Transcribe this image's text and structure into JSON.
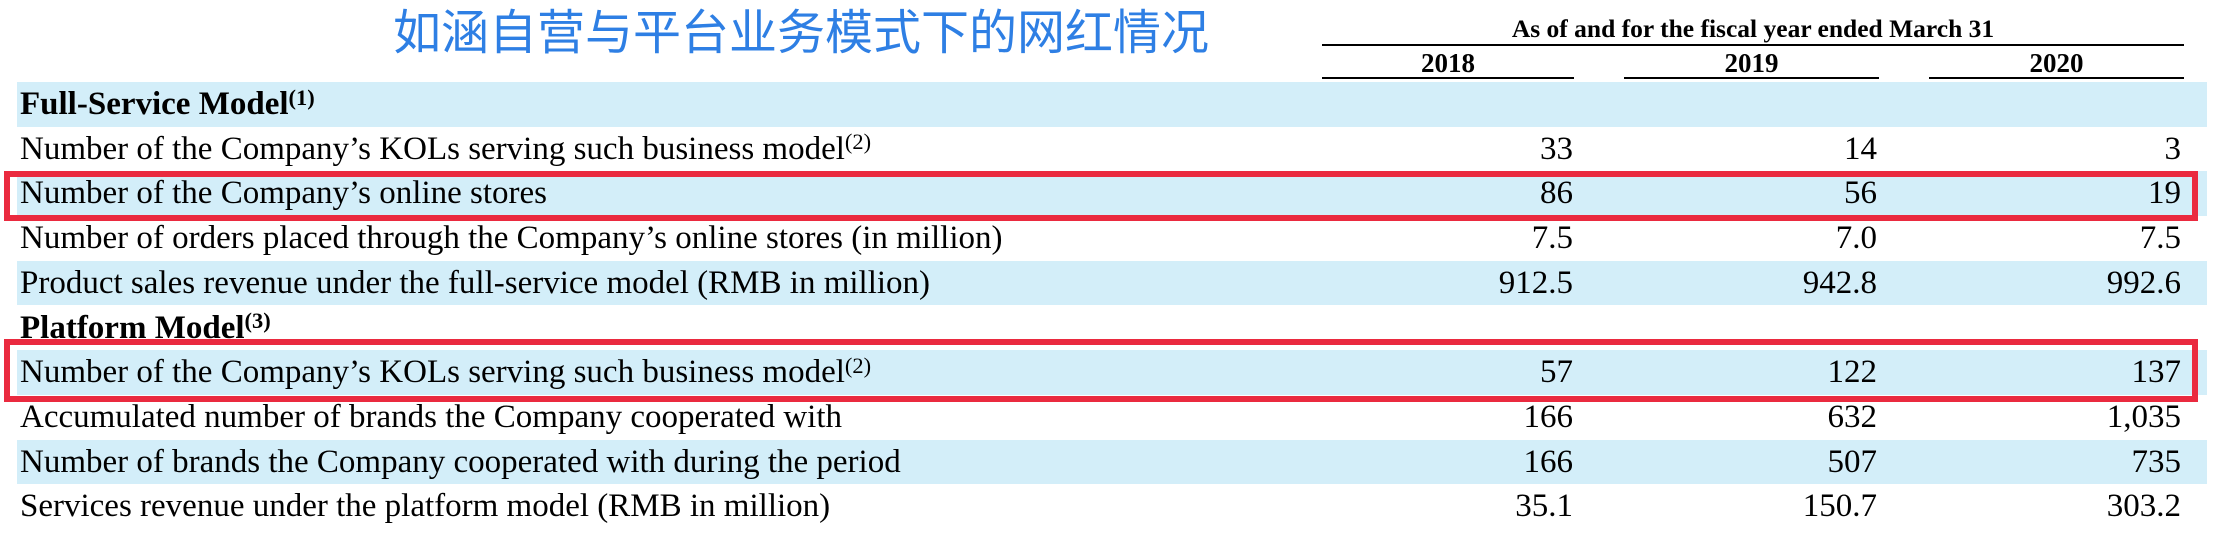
{
  "title": "如涵自营与平台业务模式下的网红情况",
  "header": {
    "period": "As of and for the fiscal year ended March 31",
    "years": [
      "2018",
      "2019",
      "2020"
    ]
  },
  "rows": [
    {
      "label": "Full-Service Model",
      "note": "(1)",
      "section": true
    },
    {
      "label": "Number of the Company’s KOLs serving such business model",
      "note": "(2)",
      "values": [
        "33",
        "14",
        "3"
      ]
    },
    {
      "label": "Number of the Company’s online stores",
      "values": [
        "86",
        "56",
        "19"
      ],
      "highlight": true
    },
    {
      "label": "Number of orders placed through the Company’s online stores (in million)",
      "values": [
        "7.5",
        "7.0",
        "7.5"
      ]
    },
    {
      "label": "Product sales revenue under the full-service model (RMB in million)",
      "values": [
        "912.5",
        "942.8",
        "992.6"
      ]
    },
    {
      "label": "Platform Model",
      "note": "(3)",
      "section": true
    },
    {
      "label": "Number of the Company’s KOLs serving such business model",
      "note": "(2)",
      "values": [
        "57",
        "122",
        "137"
      ],
      "highlight": true
    },
    {
      "label": "Accumulated number of brands the Company cooperated with",
      "values": [
        "166",
        "632",
        "1,035"
      ]
    },
    {
      "label": "Number of brands the Company cooperated with during the period",
      "values": [
        "166",
        "507",
        "735"
      ]
    },
    {
      "label": "Services revenue under the platform model (RMB in million)",
      "values": [
        "35.1",
        "150.7",
        "303.2"
      ]
    }
  ],
  "colors": {
    "title": "#2E7FE4",
    "band": "#D3EEF9",
    "highlight_box": "#EA2A3F"
  }
}
